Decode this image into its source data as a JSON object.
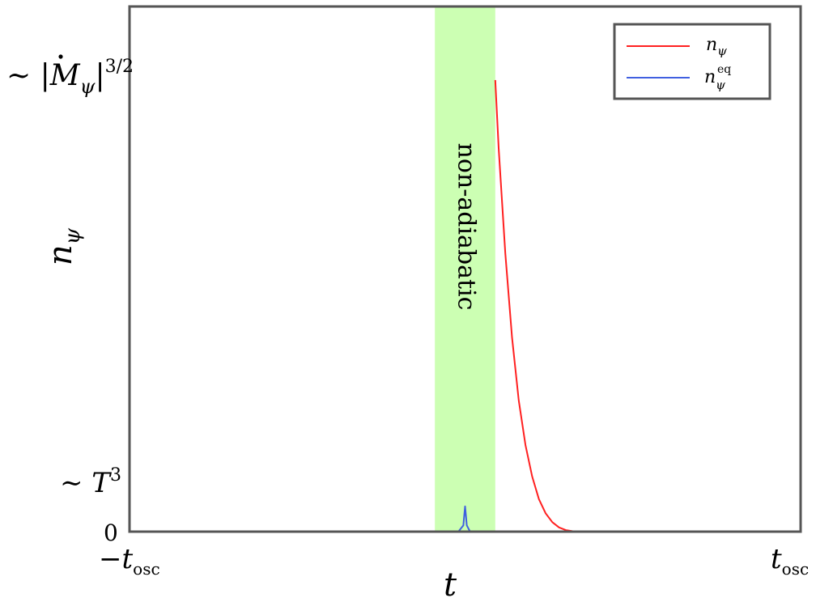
{
  "chart_data": {
    "type": "line",
    "xlabel": "t",
    "ylabel": "n_ψ",
    "x_ticks": [
      {
        "base": "−t",
        "sub": "osc",
        "value": -1
      },
      {
        "base": "t",
        "sub": "osc",
        "value": 1
      }
    ],
    "y_ticks": [
      {
        "value": 0,
        "label": "0"
      },
      {
        "value": 0.09,
        "label": "~ T³"
      },
      {
        "value": 0.86,
        "label": "~ |Ṁ_ψ|^{3/2}"
      }
    ],
    "y_tick_text": {
      "zero": "0",
      "t3_prefix": "∼ ",
      "t3_base": "T",
      "t3_sup": "3",
      "mdot_prefix": "∼ |",
      "mdot_base": "M",
      "mdot_sub": "ψ",
      "mdot_suffix": "|",
      "mdot_sup": "3/2"
    },
    "xlim": [
      -1,
      1
    ],
    "ylim": [
      0,
      1
    ],
    "shaded_region": {
      "x": [
        -0.09,
        0.09
      ],
      "label": "non-adiabatic",
      "color": "#ccffb3"
    },
    "legend": {
      "position": "top-right",
      "entries": [
        {
          "base": "n",
          "sub": "ψ",
          "sup": "",
          "color": "#ff2020"
        },
        {
          "base": "n",
          "sub": "ψ",
          "sup": "eq",
          "color": "#4060e0"
        }
      ]
    },
    "series": [
      {
        "name": "n_ψ",
        "color": "#ff2020",
        "x": [
          0.09,
          0.1,
          0.12,
          0.14,
          0.16,
          0.18,
          0.2,
          0.22,
          0.24,
          0.26,
          0.28,
          0.3,
          0.32,
          0.34,
          0.36
        ],
        "y": [
          0.86,
          0.73,
          0.53,
          0.37,
          0.25,
          0.165,
          0.105,
          0.062,
          0.035,
          0.018,
          0.008,
          0.003,
          0.001,
          0.0,
          0.0
        ]
      },
      {
        "name": "n_ψ^eq",
        "color": "#4060e0",
        "x": [
          -0.02,
          -0.005,
          -0.003,
          0.0,
          0.003,
          0.005,
          0.015
        ],
        "y": [
          0.0,
          0.012,
          0.028,
          0.048,
          0.028,
          0.012,
          0.0
        ]
      }
    ]
  },
  "colors": {
    "axes": "#555555",
    "band": "#ccffb3"
  }
}
